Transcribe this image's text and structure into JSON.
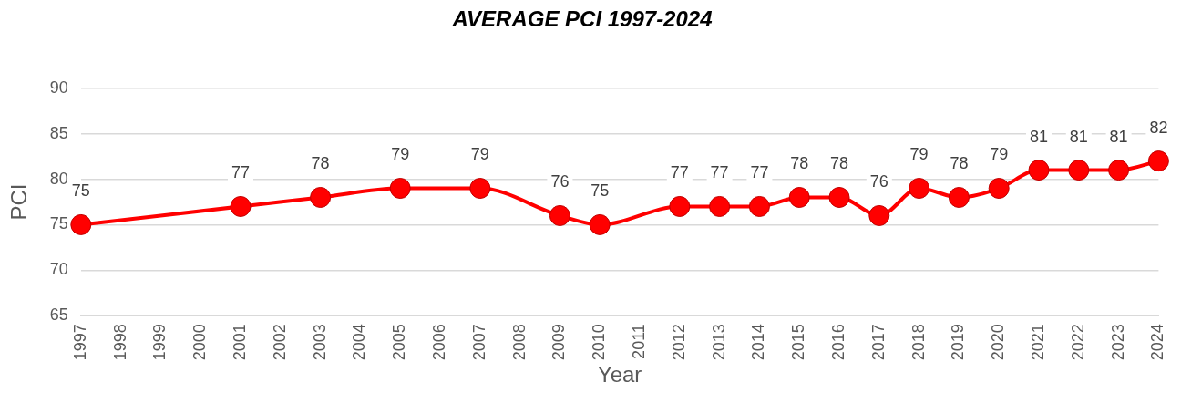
{
  "chart_data": {
    "type": "line",
    "title": "AVERAGE PCI 1997-2024",
    "xlabel": "Year",
    "ylabel": "PCI",
    "categories": [
      "1997",
      "1998",
      "1999",
      "2000",
      "2001",
      "2002",
      "2003",
      "2004",
      "2005",
      "2006",
      "2007",
      "2008",
      "2009",
      "2010",
      "2011",
      "2012",
      "2013",
      "2014",
      "2015",
      "2016",
      "2017",
      "2018",
      "2019",
      "2020",
      "2021",
      "2022",
      "2023",
      "2024"
    ],
    "series": [
      {
        "color": "#ff0000",
        "values": [
          75,
          null,
          null,
          null,
          77,
          null,
          78,
          null,
          79,
          null,
          79,
          null,
          76,
          75,
          null,
          77,
          77,
          77,
          78,
          78,
          76,
          79,
          78,
          79,
          81,
          81,
          81,
          82
        ]
      }
    ],
    "ylim": [
      65,
      90
    ],
    "yticks": [
      65,
      70,
      75,
      80,
      85,
      90
    ],
    "grid": "y",
    "marker": "circle",
    "line_style": "solid",
    "data_labels": true
  }
}
